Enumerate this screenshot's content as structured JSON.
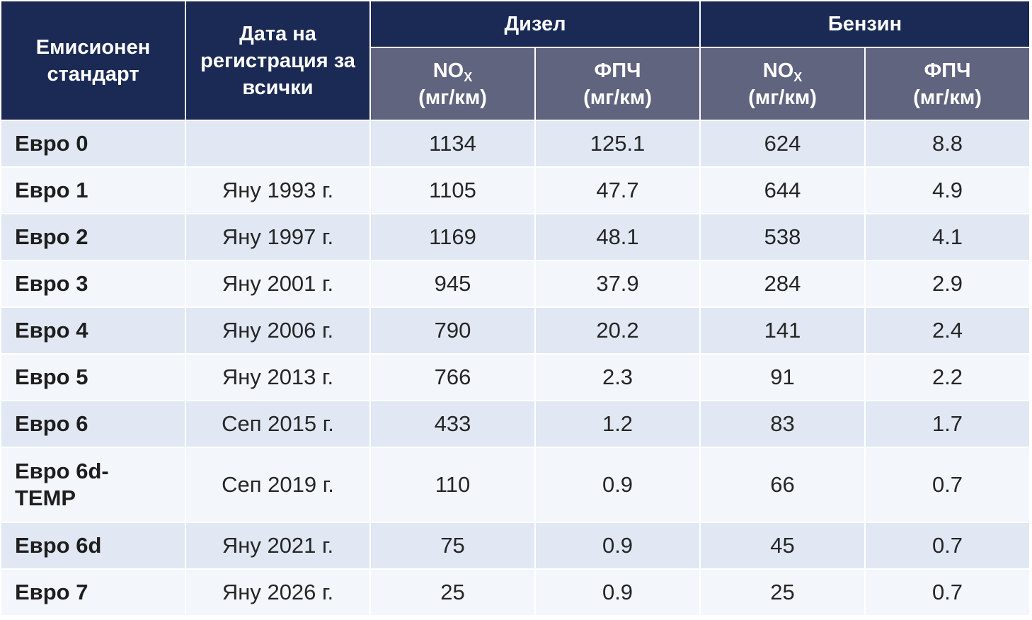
{
  "header": {
    "standard": "Емисионен стандарт",
    "date": "Дата на регистрация за всички",
    "diesel": "Дизел",
    "petrol": "Бензин",
    "nox_main": "NO",
    "nox_sub": "X",
    "pm": "ФПЧ",
    "unit": "(мг/км)"
  },
  "rows": [
    {
      "standard": "Евро 0",
      "date": "",
      "diesel_nox": "1134",
      "diesel_pm": "125.1",
      "petrol_nox": "624",
      "petrol_pm": "8.8"
    },
    {
      "standard": "Евро 1",
      "date": "Яну 1993 г.",
      "diesel_nox": "1105",
      "diesel_pm": "47.7",
      "petrol_nox": "644",
      "petrol_pm": "4.9"
    },
    {
      "standard": "Евро 2",
      "date": "Яну 1997 г.",
      "diesel_nox": "1169",
      "diesel_pm": "48.1",
      "petrol_nox": "538",
      "petrol_pm": "4.1"
    },
    {
      "standard": "Евро 3",
      "date": "Яну 2001 г.",
      "diesel_nox": "945",
      "diesel_pm": "37.9",
      "petrol_nox": "284",
      "petrol_pm": "2.9"
    },
    {
      "standard": "Евро 4",
      "date": "Яну 2006 г.",
      "diesel_nox": "790",
      "diesel_pm": "20.2",
      "petrol_nox": "141",
      "petrol_pm": "2.4"
    },
    {
      "standard": "Евро 5",
      "date": "Яну 2013 г.",
      "diesel_nox": "766",
      "diesel_pm": "2.3",
      "petrol_nox": "91",
      "petrol_pm": "2.2"
    },
    {
      "standard": "Евро 6",
      "date": "Сеп 2015 г.",
      "diesel_nox": "433",
      "diesel_pm": "1.2",
      "petrol_nox": "83",
      "petrol_pm": "1.7"
    },
    {
      "standard": "Евро 6d-TEMP",
      "date": "Сеп 2019 г.",
      "diesel_nox": "110",
      "diesel_pm": "0.9",
      "petrol_nox": "66",
      "petrol_pm": "0.7"
    },
    {
      "standard": "Евро 6d",
      "date": "Яну 2021 г.",
      "diesel_nox": "75",
      "diesel_pm": "0.9",
      "petrol_nox": "45",
      "petrol_pm": "0.7"
    },
    {
      "standard": "Евро 7",
      "date": "Яну 2026 г.",
      "diesel_nox": "25",
      "diesel_pm": "0.9",
      "petrol_nox": "25",
      "petrol_pm": "0.7"
    }
  ]
}
